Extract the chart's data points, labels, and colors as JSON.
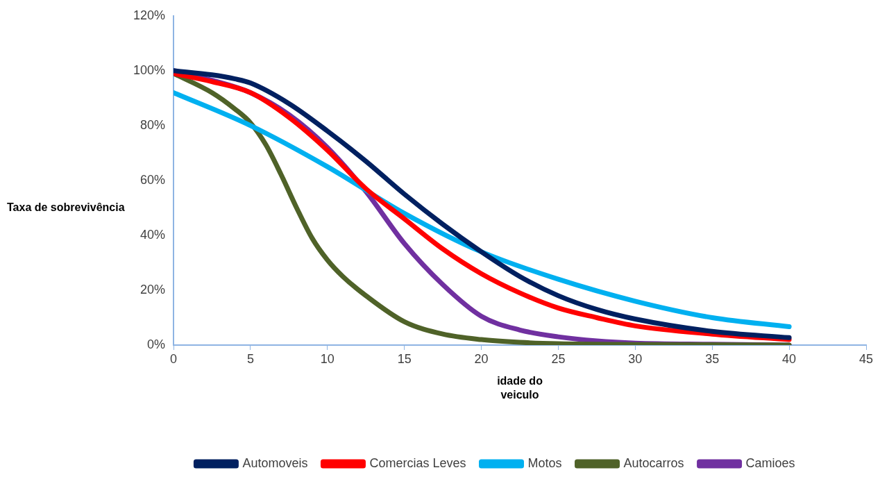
{
  "chart_data": {
    "type": "line",
    "xlabel": "idade do veiculo",
    "ylabel": "Taxa de sobrevivência",
    "xlim": [
      0,
      45
    ],
    "xticks": [
      0,
      5,
      10,
      15,
      20,
      25,
      30,
      35,
      40,
      45
    ],
    "ylim": [
      0,
      120
    ],
    "yticks": [
      {
        "value": 0,
        "label": "0%"
      },
      {
        "value": 20,
        "label": "20%"
      },
      {
        "value": 40,
        "label": "40%"
      },
      {
        "value": 60,
        "label": "60%"
      },
      {
        "value": 80,
        "label": "80%"
      },
      {
        "value": 100,
        "label": "100%"
      },
      {
        "value": 120,
        "label": "120%"
      }
    ],
    "grid": false,
    "legend": "bottom",
    "marker": "none",
    "line_style": "solid",
    "series": [
      {
        "name": "Automoveis",
        "color": "#002060",
        "x": [
          0,
          2.5,
          4,
          5,
          7.5,
          10,
          12.5,
          15,
          17.5,
          20,
          22.5,
          25,
          27.5,
          30,
          35,
          40
        ],
        "values": [
          100,
          98.5,
          97,
          95.5,
          88,
          78,
          67,
          55,
          44,
          34,
          25,
          18,
          13,
          9.5,
          5,
          2.7
        ]
      },
      {
        "name": "Comercias Leves",
        "color": "#ff0000",
        "x": [
          0,
          2.5,
          5,
          7.5,
          10,
          12.5,
          15,
          17.5,
          20,
          22.5,
          25,
          27.5,
          30,
          35,
          40
        ],
        "values": [
          99,
          96,
          92,
          83,
          71,
          57,
          46,
          35,
          26,
          19,
          13.5,
          10,
          7,
          4,
          2
        ]
      },
      {
        "name": "Motos",
        "color": "#00b0f0",
        "x": [
          0,
          5,
          10,
          15,
          20,
          25,
          30,
          35,
          40
        ],
        "values": [
          92,
          80,
          65,
          48,
          34,
          24,
          16,
          10,
          6.7
        ]
      },
      {
        "name": "Autocarros",
        "color": "#4f6228",
        "x": [
          0,
          2.5,
          4,
          5,
          6,
          7,
          8,
          9,
          10,
          11,
          12.5,
          15,
          17.5,
          20,
          22.5,
          25,
          30,
          40
        ],
        "values": [
          99,
          92,
          86,
          81,
          73,
          62,
          50,
          39,
          31,
          25,
          18,
          8.5,
          4,
          2,
          1,
          0.5,
          0.2,
          0
        ]
      },
      {
        "name": "Camioes",
        "color": "#7030a0",
        "x": [
          0,
          2.5,
          5,
          7.5,
          10,
          12.5,
          15,
          17.5,
          20,
          22.5,
          25,
          27.5,
          30,
          35,
          40
        ],
        "values": [
          100,
          96.5,
          92,
          84,
          72,
          56,
          37,
          22,
          10.5,
          5.5,
          3,
          1.5,
          0.7,
          0.3,
          0
        ]
      }
    ]
  }
}
